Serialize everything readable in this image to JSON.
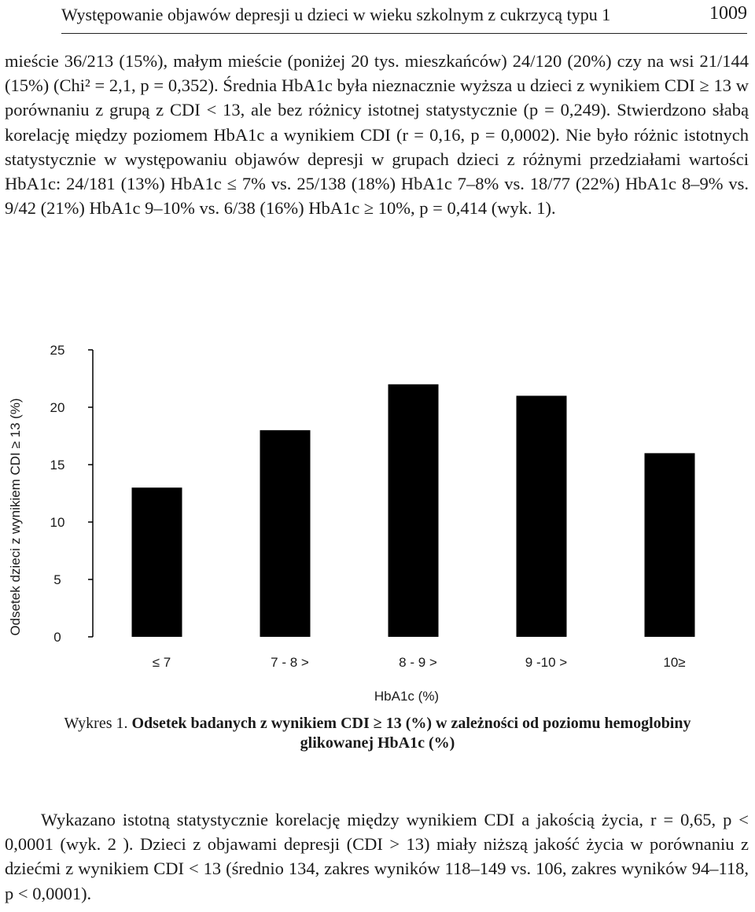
{
  "header": {
    "title": "Występowanie objawów depresji u dzieci w wieku szkolnym z cukrzycą typu 1",
    "page_number": "1009"
  },
  "paragraph_top": "mieście 36/213 (15%), małym mieście (poniżej 20 tys. mieszkańców) 24/120 (20%) czy na wsi 21/144 (15%) (Chi² = 2,1, p = 0,352). Średnia HbA1c była nieznacznie wyższa u dzieci z wynikiem CDI ≥ 13 w porównaniu z grupą z CDI < 13, ale bez różnicy istotnej statystycznie (p = 0,249). Stwierdzono słabą korelację między poziomem HbA1c a wynikiem CDI (r = 0,16, p = 0,0002). Nie było różnic istotnych statystycznie w występowaniu objawów depresji w grupach dzieci z różnymi przedziałami wartości HbA1c: 24/181 (13%) HbA1c ≤ 7% vs. 25/138 (18%) HbA1c 7–8% vs. 18/77 (22%) HbA1c 8–9% vs. 9/42 (21%) HbA1c 9–10% vs. 6/38 (16%) HbA1c ≥ 10%, p = 0,414 (wyk. 1).",
  "chart_data": {
    "type": "bar",
    "categories": [
      "≤ 7",
      "7 - 8 >",
      "8 - 9 >",
      "9 -10 >",
      "10≥"
    ],
    "values": [
      13,
      18,
      22,
      21,
      16
    ],
    "ylim": [
      0,
      25
    ],
    "yticks": [
      "0",
      "5",
      "10",
      "15",
      "20",
      "25"
    ],
    "xlabel": "HbA1c (%)",
    "ylabel": "Odsetek  dzieci z wynikiem  CDI ≥ 13 (%)",
    "bar_color": "#000000",
    "grid": false
  },
  "caption": {
    "prefix": "Wykres 1.",
    "bold_text": "Odsetek badanych z wynikiem CDI ≥ 13 (%) w zależności od poziomu hemoglobiny glikowanej HbA1c (%)"
  },
  "paragraph_bottom": "Wykazano istotną statystycznie korelację między wynikiem CDI a jakością życia, r = 0,65, p < 0,0001 (wyk. 2 ). Dzieci z objawami depresji (CDI > 13) miały niższą jakość życia w porównaniu z dziećmi z wynikiem CDI < 13 (średnio 134, zakres wyników 118–149 vs. 106, zakres wyników 94–118, p < 0,0001)."
}
